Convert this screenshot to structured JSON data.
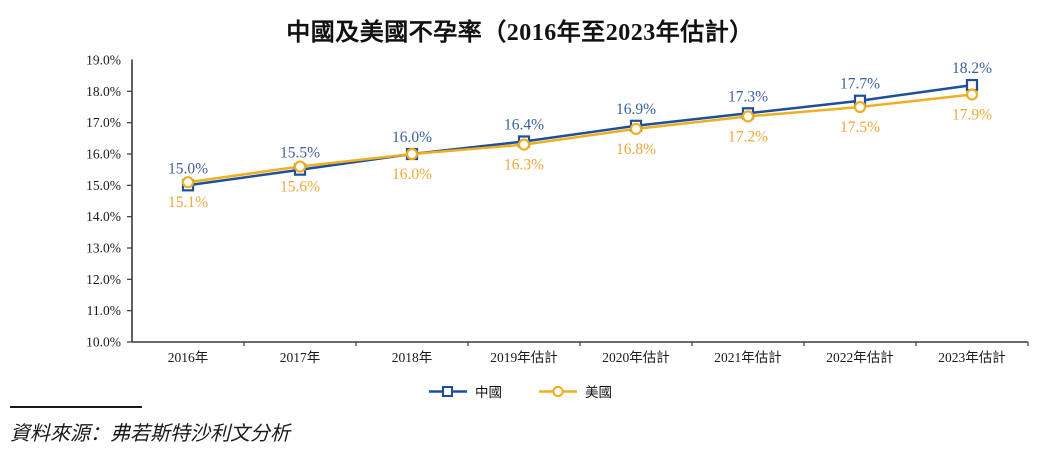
{
  "title": "中國及美國不孕率（2016年至2023年估計）",
  "source_text": "資料來源：弗若斯特沙利文分析",
  "legend": {
    "items": [
      {
        "label": "中國",
        "marker": "square",
        "color": "#1F4E9B"
      },
      {
        "label": "美國",
        "marker": "circle",
        "color": "#EEB021"
      }
    ]
  },
  "colors": {
    "china_line": "#1F4E9B",
    "china_label": "#3A5F9F",
    "us_line": "#EEB021",
    "us_label": "#F0A73C",
    "axis": "#3a3a3a",
    "tick_text": "#1a1a1a"
  },
  "chart_data": {
    "type": "line",
    "title": "中國及美國不孕率（2016年至2023年估計）",
    "categories": [
      "2016年",
      "2017年",
      "2018年",
      "2019年估計",
      "2020年估計",
      "2021年估計",
      "2022年估計",
      "2023年估計"
    ],
    "series": [
      {
        "name": "中國",
        "marker": "square",
        "color_key": "china",
        "values": [
          15.0,
          15.5,
          16.0,
          16.4,
          16.9,
          17.3,
          17.7,
          18.2
        ],
        "labels": [
          "15.0%",
          "15.5%",
          "16.0%",
          "16.4%",
          "16.9%",
          "17.3%",
          "17.7%",
          "18.2%"
        ],
        "label_position": "above"
      },
      {
        "name": "美國",
        "marker": "circle",
        "color_key": "us",
        "values": [
          15.1,
          15.6,
          16.0,
          16.3,
          16.8,
          17.2,
          17.5,
          17.9
        ],
        "labels": [
          "15.1%",
          "15.6%",
          "16.0%",
          "16.3%",
          "16.8%",
          "17.2%",
          "17.5%",
          "17.9%"
        ],
        "label_position": "below"
      }
    ],
    "ylim": [
      10.0,
      19.0
    ],
    "y_tick_labels": [
      "19.0%",
      "18.0%",
      "17.0%",
      "16.0%",
      "15.0%",
      "14.0%",
      "13.0%",
      "12.0%",
      "11.0%",
      "10.0%"
    ],
    "xlabel": "",
    "ylabel": "",
    "grid": false,
    "legend_position": "bottom-center"
  }
}
